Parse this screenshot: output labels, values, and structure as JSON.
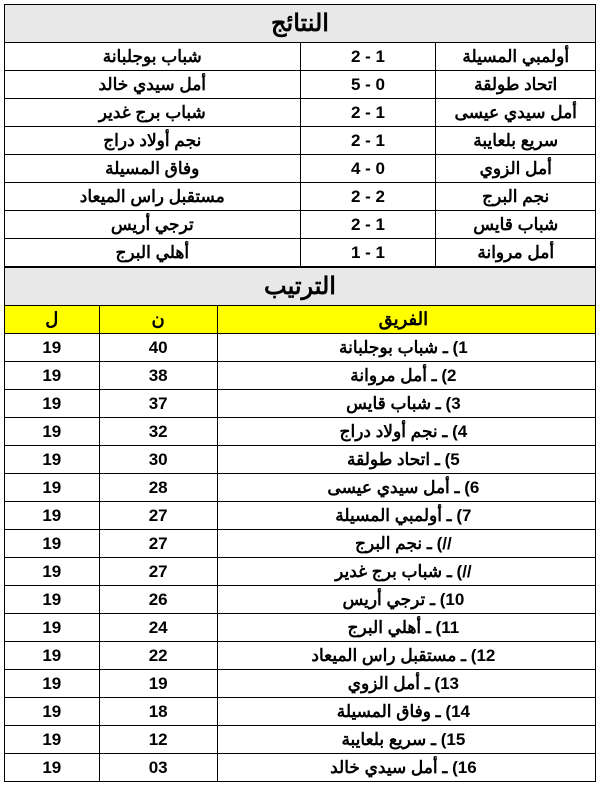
{
  "results": {
    "title": "النتائج",
    "matches": [
      {
        "home": "أولمبي المسيلة",
        "score": "2 - 1",
        "away": "شباب بوجلبانة"
      },
      {
        "home": "اتحاد طولقة",
        "score": "5 - 0",
        "away": "أمل سيدي خالد"
      },
      {
        "home": "أمل سيدي عيسى",
        "score": "2 - 1",
        "away": "شباب برج غدير"
      },
      {
        "home": "سريع بلعايبة",
        "score": "2 - 1",
        "away": "نجم أولاد دراج"
      },
      {
        "home": "أمل الزوي",
        "score": "4 - 0",
        "away": "وفاق المسيلة"
      },
      {
        "home": "نجم البرج",
        "score": "2 - 2",
        "away": "مستقبل راس الميعاد"
      },
      {
        "home": "شباب قايس",
        "score": "2 - 1",
        "away": "ترجي أريس"
      },
      {
        "home": "أمل مروانة",
        "score": "1 - 1",
        "away": "أهلي البرج"
      }
    ]
  },
  "standings": {
    "title": "الترتيب",
    "headers": {
      "team": "الفريق",
      "points": "ن",
      "played": "ل"
    },
    "rows": [
      {
        "rank": "1) ـ",
        "team": "شباب بوجلبانة",
        "points": "40",
        "played": "19"
      },
      {
        "rank": "2) ـ",
        "team": "أمل مروانة",
        "points": "38",
        "played": "19"
      },
      {
        "rank": "3) ـ",
        "team": "شباب قايس",
        "points": "37",
        "played": "19"
      },
      {
        "rank": "4) ـ",
        "team": "نجم أولاد دراج",
        "points": "32",
        "played": "19"
      },
      {
        "rank": "5) ـ",
        "team": "اتحاد طولقة",
        "points": "30",
        "played": "19"
      },
      {
        "rank": "6) ـ",
        "team": "أمل سيدي عيسى",
        "points": "28",
        "played": "19"
      },
      {
        "rank": "7) ـ",
        "team": "أولمبي المسيلة",
        "points": "27",
        "played": "19"
      },
      {
        "rank": "//) ـ",
        "team": "نجم البرج",
        "points": "27",
        "played": "19"
      },
      {
        "rank": "//) ـ",
        "team": "شباب برج غدير",
        "points": "27",
        "played": "19"
      },
      {
        "rank": "10) ـ",
        "team": "ترجي أريس",
        "points": "26",
        "played": "19"
      },
      {
        "rank": "11) ـ",
        "team": "أهلي البرج",
        "points": "24",
        "played": "19"
      },
      {
        "rank": "12) ـ",
        "team": "مستقبل راس الميعاد",
        "points": "22",
        "played": "19"
      },
      {
        "rank": "13) ـ",
        "team": "أمل الزوي",
        "points": "19",
        "played": "19"
      },
      {
        "rank": "14) ـ",
        "team": "وفاق المسيلة",
        "points": "18",
        "played": "19"
      },
      {
        "rank": "15) ـ",
        "team": "سريع بلعايبة",
        "points": "12",
        "played": "19"
      },
      {
        "rank": "16) ـ",
        "team": "أمل سيدي خالد",
        "points": "03",
        "played": "19"
      }
    ]
  },
  "colors": {
    "header_bg": "#e8e8e8",
    "standings_header_bg": "#ffff00",
    "border": "#000000",
    "text": "#000000"
  }
}
